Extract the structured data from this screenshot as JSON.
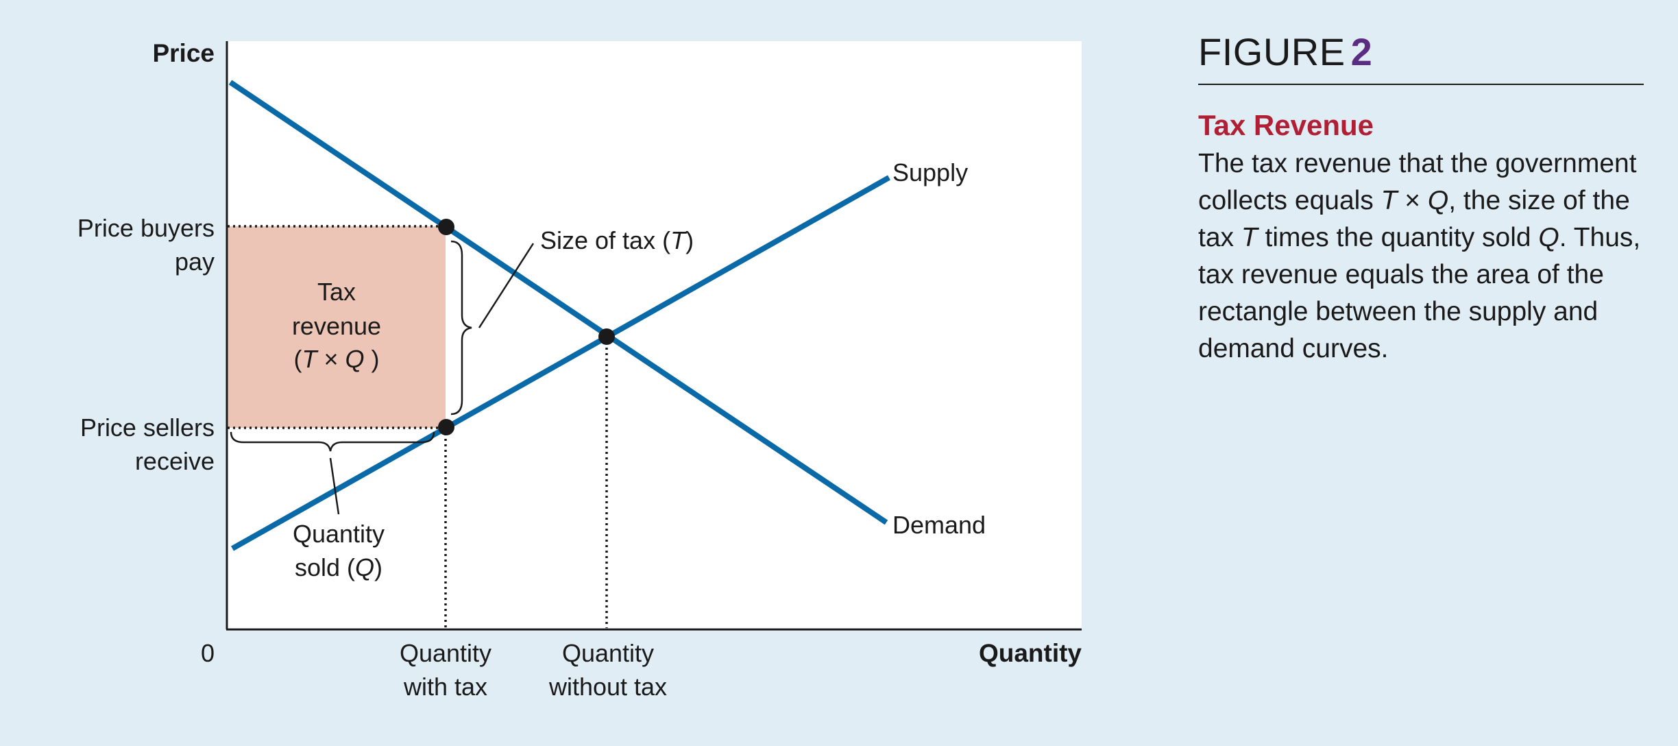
{
  "figure": {
    "label": "FIGURE",
    "number": "2",
    "title": "Tax Revenue",
    "caption_parts": [
      "The tax revenue that the government collects equals ",
      "T",
      " × ",
      "Q",
      ", the size of the tax ",
      "T",
      " times the quantity sold ",
      "Q",
      ". Thus, tax revenue equals the area of the rectangle between the supply and demand curves."
    ]
  },
  "diagram": {
    "y_axis_label": "Price",
    "x_axis_label": "Quantity",
    "origin_label": "0",
    "curves": {
      "supply": "Supply",
      "demand": "Demand"
    },
    "price_labels": {
      "buyers_line1": "Price buyers",
      "buyers_line2": "pay",
      "sellers_line1": "Price sellers",
      "sellers_line2": "receive"
    },
    "quantity_labels": {
      "with_tax_line1": "Quantity",
      "with_tax_line2": "with tax",
      "without_tax_line1": "Quantity",
      "without_tax_line2": "without tax"
    },
    "tax_revenue_box": {
      "line1": "Tax",
      "line2": "revenue",
      "line3_open": "(",
      "line3_T": "T",
      "line3_times": " × ",
      "line3_Q": "Q",
      "line3_close": " )"
    },
    "size_of_tax": {
      "text": "Size of tax (",
      "symbol": "T",
      "close": ")"
    },
    "quantity_sold": {
      "line1": "Quantity",
      "line2_text": "sold (",
      "symbol": "Q",
      "close": ")"
    },
    "colors": {
      "curve": "#0a6aa8",
      "tax_area": "#edc5b6",
      "plot_bg": "#ffffff",
      "page_bg": "#e1edf4",
      "title_red": "#b01f33",
      "number_purple": "#5a2d82"
    }
  }
}
